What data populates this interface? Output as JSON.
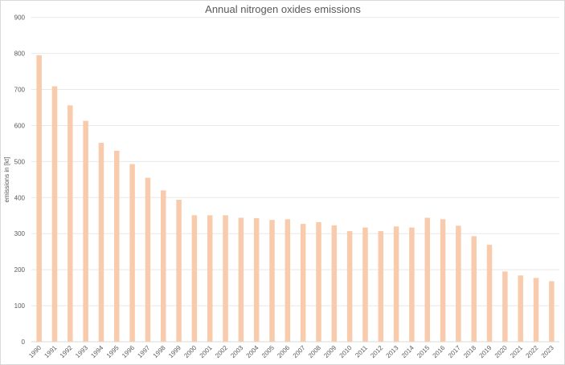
{
  "chart_data": {
    "type": "bar",
    "title": "Annual nitrogen oxides emissions",
    "xlabel": "",
    "ylabel": "emissions in [kt]",
    "ylim": [
      0,
      900
    ],
    "yticks": [
      0,
      100,
      200,
      300,
      400,
      500,
      600,
      700,
      800,
      900
    ],
    "grid": true,
    "bar_color": "#f8cbad",
    "categories": [
      "1990",
      "1991",
      "1992",
      "1993",
      "1994",
      "1995",
      "1996",
      "1997",
      "1998",
      "1999",
      "2000",
      "2001",
      "2002",
      "2003",
      "2004",
      "2005",
      "2006",
      "2007",
      "2008",
      "2009",
      "2010",
      "2011",
      "2012",
      "2013",
      "2014",
      "2015",
      "2016",
      "2017",
      "2018",
      "2019",
      "2020",
      "2021",
      "2022",
      "2023"
    ],
    "values": [
      795,
      709,
      656,
      613,
      552,
      530,
      493,
      455,
      420,
      394,
      351,
      351,
      351,
      344,
      343,
      338,
      340,
      327,
      332,
      323,
      307,
      317,
      307,
      320,
      317,
      344,
      340,
      322,
      293,
      269,
      195,
      184,
      177,
      168
    ]
  }
}
